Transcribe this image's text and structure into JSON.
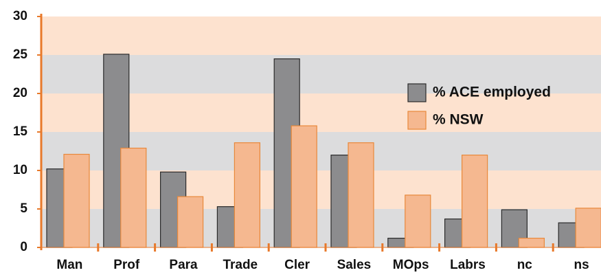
{
  "chart_data": {
    "type": "bar",
    "categories": [
      "Man",
      "Prof",
      "Para",
      "Trade",
      "Cler",
      "Sales",
      "MOps",
      "Labrs",
      "nc",
      "ns"
    ],
    "series": [
      {
        "name": "% ACE employed",
        "color": "#8c8c8e",
        "values": [
          10.2,
          25.1,
          9.8,
          5.3,
          24.5,
          12,
          1.2,
          3.7,
          4.9,
          3.2
        ]
      },
      {
        "name": "% NSW",
        "color": "#f5b890",
        "values": [
          12.1,
          12.9,
          6.6,
          13.6,
          15.8,
          13.6,
          6.8,
          12,
          1.2,
          5.1
        ]
      }
    ],
    "ylim": [
      0,
      30
    ],
    "yticks": [
      0,
      5,
      10,
      15,
      20,
      25,
      30
    ],
    "band_colors": [
      "#dcdcdd",
      "#fde2cf"
    ],
    "axis_color": "#e8792a"
  }
}
